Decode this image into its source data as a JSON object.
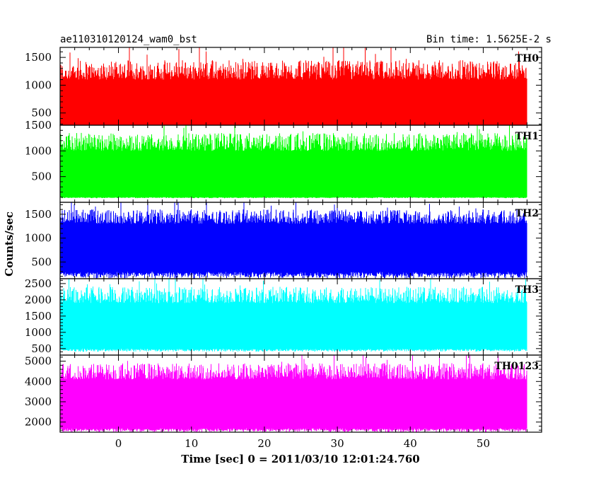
{
  "header": {
    "left_title": "ae110310120124_wam0_bst",
    "right_title": "Bin time: 1.5625E-2 s"
  },
  "chart_data": {
    "type": "line",
    "xlabel": "Time [sec] 0 = 2011/03/10 12:01:24.760",
    "ylabel": "Counts/sec",
    "xlim": [
      -8,
      58
    ],
    "x_range_data": [
      -8,
      56
    ],
    "xticks": [
      0,
      10,
      20,
      30,
      40,
      50
    ],
    "bin_time_s": 0.015625,
    "panels": [
      {
        "label": "TH0",
        "color": "#ff0000",
        "ylim": [
          280,
          1680
        ],
        "yticks": [
          500,
          1000,
          1500
        ],
        "band": [
          150,
          1450
        ],
        "base": [
          280,
          1100
        ]
      },
      {
        "label": "TH1",
        "color": "#00ff00",
        "ylim": [
          0,
          1500
        ],
        "yticks": [
          500,
          1000,
          1500
        ],
        "band": [
          80,
          1350
        ],
        "base": [
          100,
          1000
        ]
      },
      {
        "label": "TH2",
        "color": "#0000ff",
        "ylim": [
          150,
          1750
        ],
        "yticks": [
          500,
          1000,
          1500
        ],
        "band": [
          150,
          1600
        ],
        "base": [
          300,
          1300
        ]
      },
      {
        "label": "TH3",
        "color": "#00ffff",
        "ylim": [
          300,
          2650
        ],
        "yticks": [
          500,
          1000,
          1500,
          2000,
          2500
        ],
        "band": [
          400,
          2400
        ],
        "base": [
          500,
          1900
        ]
      },
      {
        "label": "TH0123",
        "color": "#ff00ff",
        "ylim": [
          1500,
          5300
        ],
        "yticks": [
          2000,
          3000,
          4000,
          5000
        ],
        "band": [
          1500,
          4900
        ],
        "base": [
          1700,
          4100
        ]
      }
    ]
  }
}
